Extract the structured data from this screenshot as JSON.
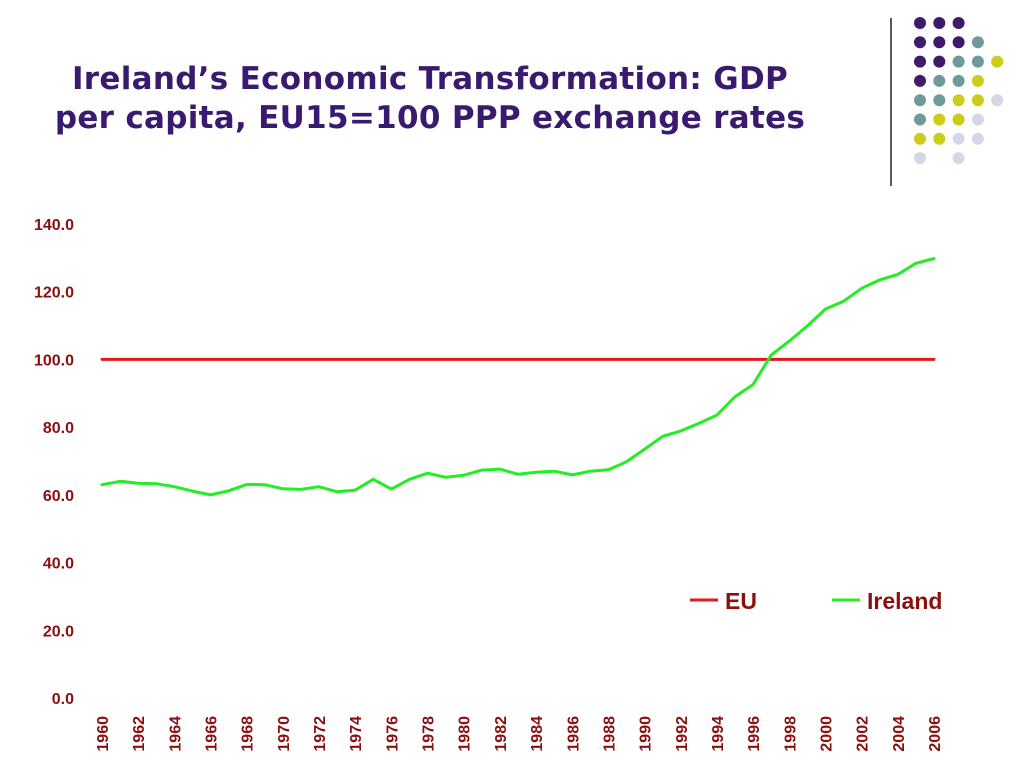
{
  "slide": {
    "title_lines": [
      "Ireland’s Economic Transformation: GDP",
      "per capita, EU15=100 PPP exchange rates"
    ]
  },
  "decoration": {
    "dot_colors": [
      "#3f1a6b",
      "#6f9a9a",
      "#cccc1a",
      "#d6d6e6"
    ],
    "dot_grid": [
      [
        0,
        0,
        0,
        null
      ],
      [
        0,
        0,
        0,
        1
      ],
      [
        0,
        0,
        1,
        1,
        2
      ],
      [
        0,
        1,
        1,
        2
      ],
      [
        1,
        1,
        2,
        2,
        3
      ],
      [
        1,
        2,
        2,
        3
      ],
      [
        2,
        2,
        3,
        3
      ],
      [
        3,
        null,
        3
      ]
    ]
  },
  "chart_data": {
    "type": "line",
    "title": "",
    "xlabel": "",
    "ylabel": "",
    "ylim": [
      0,
      140
    ],
    "y_ticks": [
      "0.0",
      "20.0",
      "40.0",
      "60.0",
      "80.0",
      "100.0",
      "120.0",
      "140.0"
    ],
    "x_tick_labels": [
      "1960",
      "1962",
      "1964",
      "1966",
      "1968",
      "1970",
      "1972",
      "1974",
      "1976",
      "1978",
      "1980",
      "1982",
      "1984",
      "1986",
      "1988",
      "1990",
      "1992",
      "1994",
      "1996",
      "1998",
      "2000",
      "2002",
      "2004",
      "2006"
    ],
    "x": [
      1960,
      1961,
      1962,
      1963,
      1964,
      1965,
      1966,
      1967,
      1968,
      1969,
      1970,
      1971,
      1972,
      1973,
      1974,
      1975,
      1976,
      1977,
      1978,
      1979,
      1980,
      1981,
      1982,
      1983,
      1984,
      1985,
      1986,
      1987,
      1988,
      1989,
      1990,
      1991,
      1992,
      1993,
      1994,
      1995,
      1996,
      1997,
      1998,
      1999,
      2000,
      2001,
      2002,
      2003,
      2004,
      2005,
      2006
    ],
    "grid": false,
    "legend_position": "lower-right",
    "series": [
      {
        "name": "EU",
        "color": "#e01a1a",
        "values": [
          100,
          100,
          100,
          100,
          100,
          100,
          100,
          100,
          100,
          100,
          100,
          100,
          100,
          100,
          100,
          100,
          100,
          100,
          100,
          100,
          100,
          100,
          100,
          100,
          100,
          100,
          100,
          100,
          100,
          100,
          100,
          100,
          100,
          100,
          100,
          100,
          100,
          100,
          100,
          100,
          100,
          100,
          100,
          100,
          100,
          100,
          100
        ]
      },
      {
        "name": "Ireland",
        "color": "#22ee22",
        "values": [
          63.0,
          64.0,
          63.4,
          63.3,
          62.4,
          61.1,
          60.0,
          61.2,
          63.1,
          63.0,
          61.8,
          61.6,
          62.4,
          60.9,
          61.4,
          64.6,
          61.7,
          64.6,
          66.4,
          65.2,
          65.8,
          67.3,
          67.6,
          66.1,
          66.7,
          67.0,
          65.9,
          67.0,
          67.4,
          69.8,
          73.5,
          77.3,
          78.9,
          81.1,
          83.6,
          89.0,
          92.6,
          101.3,
          105.4,
          109.9,
          114.9,
          117.2,
          121.0,
          123.5,
          125.1,
          128.4,
          129.8
        ]
      }
    ]
  }
}
